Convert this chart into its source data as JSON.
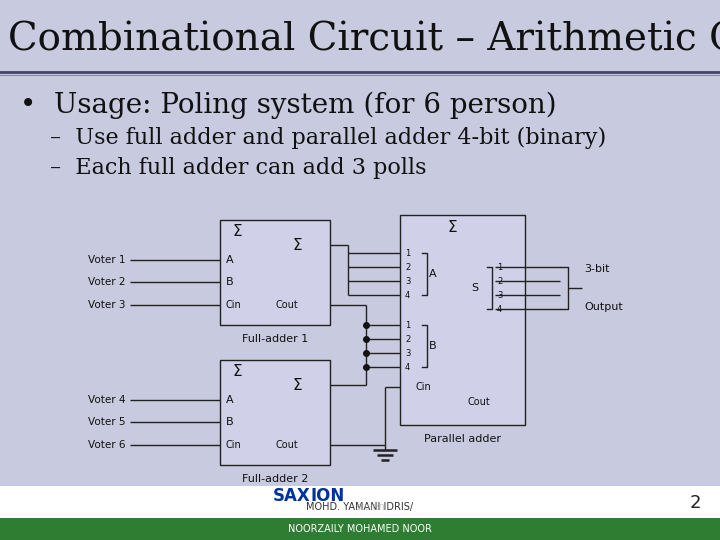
{
  "title": "Combinational Circuit – Arithmetic Circuit",
  "bullet1": "•  Usage: Poling system (for 6 person)",
  "sub1": "–  Use full adder and parallel adder 4-bit (binary)",
  "sub2": "–  Each full adder can add 3 polls",
  "bg_color": "#c8cadf",
  "title_color": "#111111",
  "text_color": "#111111",
  "footer_bg": "#2e7d32",
  "footer_line1": "MOHD. YAMANI IDRIS/",
  "footer_line2": "NOORZAILY MOHAMED NOOR",
  "page_num": "2",
  "title_fontsize": 28,
  "bullet_fontsize": 20,
  "sub_fontsize": 16
}
